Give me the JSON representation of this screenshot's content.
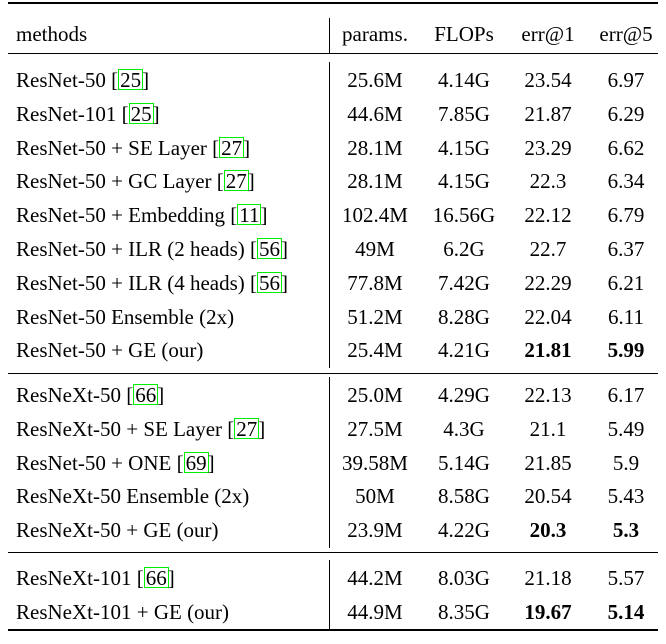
{
  "table": {
    "headers": {
      "methods": "methods",
      "params": "params.",
      "flops": "FLOPs",
      "err1": "err@1",
      "err5": "err@5"
    },
    "groups": [
      {
        "rows": [
          {
            "method": "ResNet-50 ",
            "pre": "",
            "cite": "25",
            "post": "]",
            "params": "25.6M",
            "flops": "4.14G",
            "err1": "23.54",
            "err5": "6.97",
            "bold": false
          },
          {
            "method": "ResNet-101 ",
            "pre": "",
            "cite": "25",
            "post": "]",
            "params": "44.6M",
            "flops": "7.85G",
            "err1": "21.87",
            "err5": "6.29",
            "bold": false
          },
          {
            "method": "ResNet-50 + SE Layer ",
            "pre": "",
            "cite": "27",
            "post": "]",
            "params": "28.1M",
            "flops": "4.15G",
            "err1": "23.29",
            "err5": "6.62",
            "bold": false
          },
          {
            "method": "ResNet-50 + GC Layer ",
            "pre": "",
            "cite": "27",
            "post": "]",
            "params": "28.1M",
            "flops": "4.15G",
            "err1": "22.3",
            "err5": "6.34",
            "bold": false
          },
          {
            "method": "ResNet-50 + Embedding ",
            "pre": "",
            "cite": "11",
            "post": "]",
            "params": "102.4M",
            "flops": "16.56G",
            "err1": "22.12",
            "err5": "6.79",
            "bold": false
          },
          {
            "method": "ResNet-50 + ILR (2 heads) ",
            "pre": "",
            "cite": "56",
            "post": "]",
            "params": "49M",
            "flops": "6.2G",
            "err1": "22.7",
            "err5": "6.37",
            "bold": false
          },
          {
            "method": "ResNet-50 + ILR (4 heads) ",
            "pre": "",
            "cite": "56",
            "post": "]",
            "params": "77.8M",
            "flops": "7.42G",
            "err1": "22.29",
            "err5": "6.21",
            "bold": false
          },
          {
            "method": "ResNet-50 Ensemble (2x)",
            "pre": "",
            "cite": "",
            "post": "",
            "params": "51.2M",
            "flops": "8.28G",
            "err1": "22.04",
            "err5": "6.11",
            "bold": false
          },
          {
            "method": "ResNet-50 + GE (our)",
            "pre": "",
            "cite": "",
            "post": "",
            "params": "25.4M",
            "flops": "4.21G",
            "err1": "21.81",
            "err5": "5.99",
            "bold": true
          }
        ]
      },
      {
        "rows": [
          {
            "method": "ResNeXt-50 ",
            "pre": "",
            "cite": "66",
            "post": "]",
            "params": "25.0M",
            "flops": "4.29G",
            "err1": "22.13",
            "err5": "6.17",
            "bold": false
          },
          {
            "method": "ResNeXt-50 + SE Layer ",
            "pre": "",
            "cite": "27",
            "post": "]",
            "params": "27.5M",
            "flops": "4.3G",
            "err1": "21.1",
            "err5": "5.49",
            "bold": false
          },
          {
            "method": "ResNet-50 + ONE ",
            "pre": "",
            "cite": "69",
            "post": "]",
            "params": "39.58M",
            "flops": "5.14G",
            "err1": "21.85",
            "err5": "5.9",
            "bold": false
          },
          {
            "method": "ResNeXt-50 Ensemble (2x)",
            "pre": "",
            "cite": "",
            "post": "",
            "params": "50M",
            "flops": "8.58G",
            "err1": "20.54",
            "err5": "5.43",
            "bold": false
          },
          {
            "method": "ResNeXt-50 + GE (our)",
            "pre": "",
            "cite": "",
            "post": "",
            "params": "23.9M",
            "flops": "4.22G",
            "err1": "20.3",
            "err5": "5.3",
            "bold": true
          }
        ]
      },
      {
        "rows": [
          {
            "method": "ResNeXt-101 ",
            "pre": "",
            "cite": "66",
            "post": "]",
            "params": "44.2M",
            "flops": "8.03G",
            "err1": "21.18",
            "err5": "5.57",
            "bold": false
          },
          {
            "method": "ResNeXt-101 + GE (our)",
            "pre": "",
            "cite": "",
            "post": "",
            "params": "44.9M",
            "flops": "8.35G",
            "err1": "19.67",
            "err5": "5.14",
            "bold": true
          }
        ]
      }
    ]
  },
  "colors": {
    "citation_border": "#00ee00"
  }
}
